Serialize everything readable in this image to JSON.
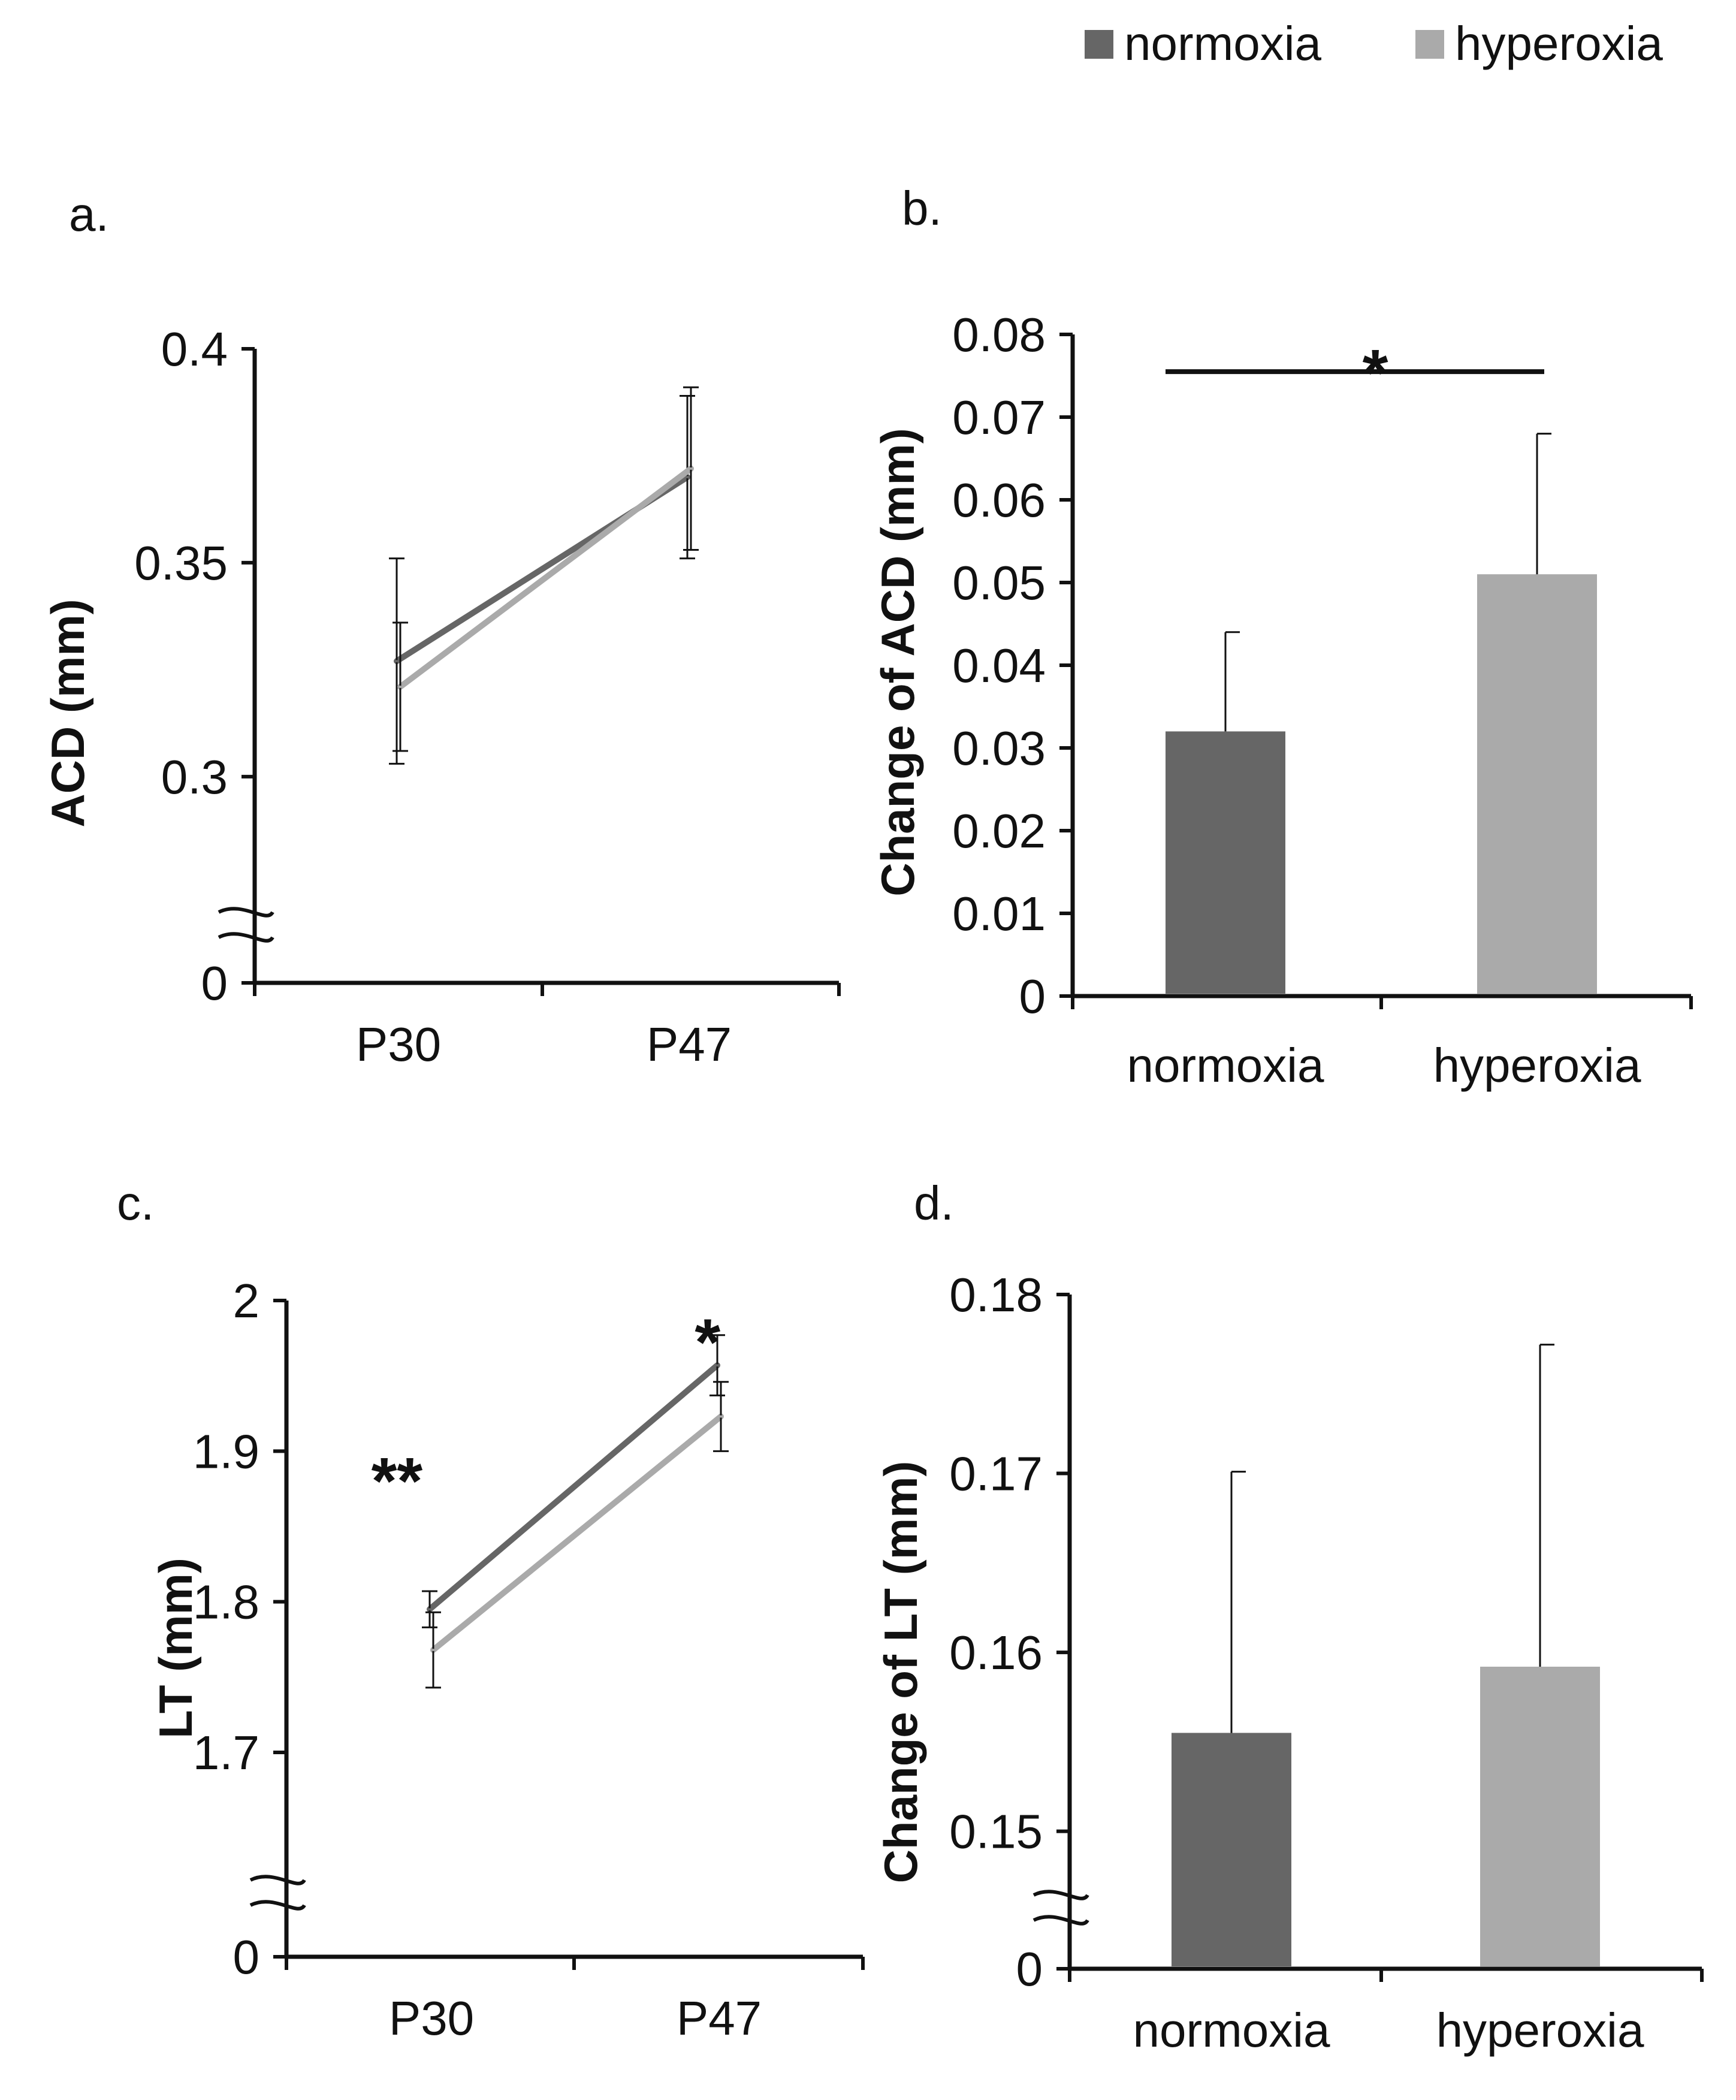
{
  "legend": {
    "items": [
      {
        "label": "normoxia",
        "color": "#666666"
      },
      {
        "label": "hyperoxia",
        "color": "#aaaaaa"
      }
    ]
  },
  "colors": {
    "normoxia": "#666666",
    "hyperoxia": "#aaaaaa",
    "axis": "#111111"
  },
  "chart_data": [
    {
      "panel": "a.",
      "type": "line",
      "ylabel": "ACD (mm)",
      "categories": [
        "P30",
        "P47"
      ],
      "ylim": [
        0.27,
        0.4
      ],
      "yticks": [
        0.3,
        0.35,
        0.4
      ],
      "ytick_labels": [
        "0.3",
        "0.35",
        "0.4"
      ],
      "axis_break": true,
      "baseline_label": "0",
      "series": [
        {
          "name": "normoxia",
          "values": [
            0.327,
            0.37
          ],
          "errors": [
            0.024,
            0.019
          ]
        },
        {
          "name": "hyperoxia",
          "values": [
            0.321,
            0.372
          ],
          "errors": [
            0.015,
            0.019
          ]
        }
      ],
      "annotations": []
    },
    {
      "panel": "b.",
      "type": "bar",
      "ylabel": "Change of ACD (mm)",
      "categories": [
        "normoxia",
        "hyperoxia"
      ],
      "ylim": [
        0,
        0.08
      ],
      "yticks": [
        0,
        0.01,
        0.02,
        0.03,
        0.04,
        0.05,
        0.06,
        0.07,
        0.08
      ],
      "ytick_labels": [
        "0",
        "0.01",
        "0.02",
        "0.03",
        "0.04",
        "0.05",
        "0.06",
        "0.07",
        "0.08"
      ],
      "values": [
        0.032,
        0.051
      ],
      "errors": [
        0.012,
        0.017
      ],
      "significance": {
        "from": 0,
        "to": 1,
        "label": "*",
        "y": 0.0755
      }
    },
    {
      "panel": "c.",
      "type": "line",
      "ylabel": "LT (mm)",
      "categories": [
        "P30",
        "P47"
      ],
      "ylim": [
        1.62,
        2.0
      ],
      "yticks": [
        1.7,
        1.8,
        1.9,
        2.0
      ],
      "ytick_labels": [
        "1.7",
        "1.8",
        "1.9",
        "2"
      ],
      "axis_break": true,
      "baseline_label": "0",
      "series": [
        {
          "name": "normoxia",
          "values": [
            1.795,
            1.957
          ],
          "errors": [
            0.012,
            0.02
          ]
        },
        {
          "name": "hyperoxia",
          "values": [
            1.768,
            1.923
          ],
          "errors": [
            0.025,
            0.023
          ]
        }
      ],
      "annotations": [
        {
          "text": "**",
          "category": 0,
          "y": 1.893,
          "offset": -0.12
        },
        {
          "text": "*",
          "category": 1,
          "y": 1.985,
          "offset": -0.04
        }
      ]
    },
    {
      "panel": "d.",
      "type": "bar",
      "ylabel": "Change of LT (mm)",
      "categories": [
        "normoxia",
        "hyperoxia"
      ],
      "ylim": [
        0.1455,
        0.18
      ],
      "yticks": [
        0.15,
        0.16,
        0.17,
        0.18
      ],
      "ytick_labels": [
        "0.15",
        "0.16",
        "0.17",
        "0.18"
      ],
      "axis_break": true,
      "baseline_label": "0",
      "values": [
        0.1555,
        0.1592
      ],
      "errors": [
        0.0146,
        0.018
      ]
    }
  ]
}
